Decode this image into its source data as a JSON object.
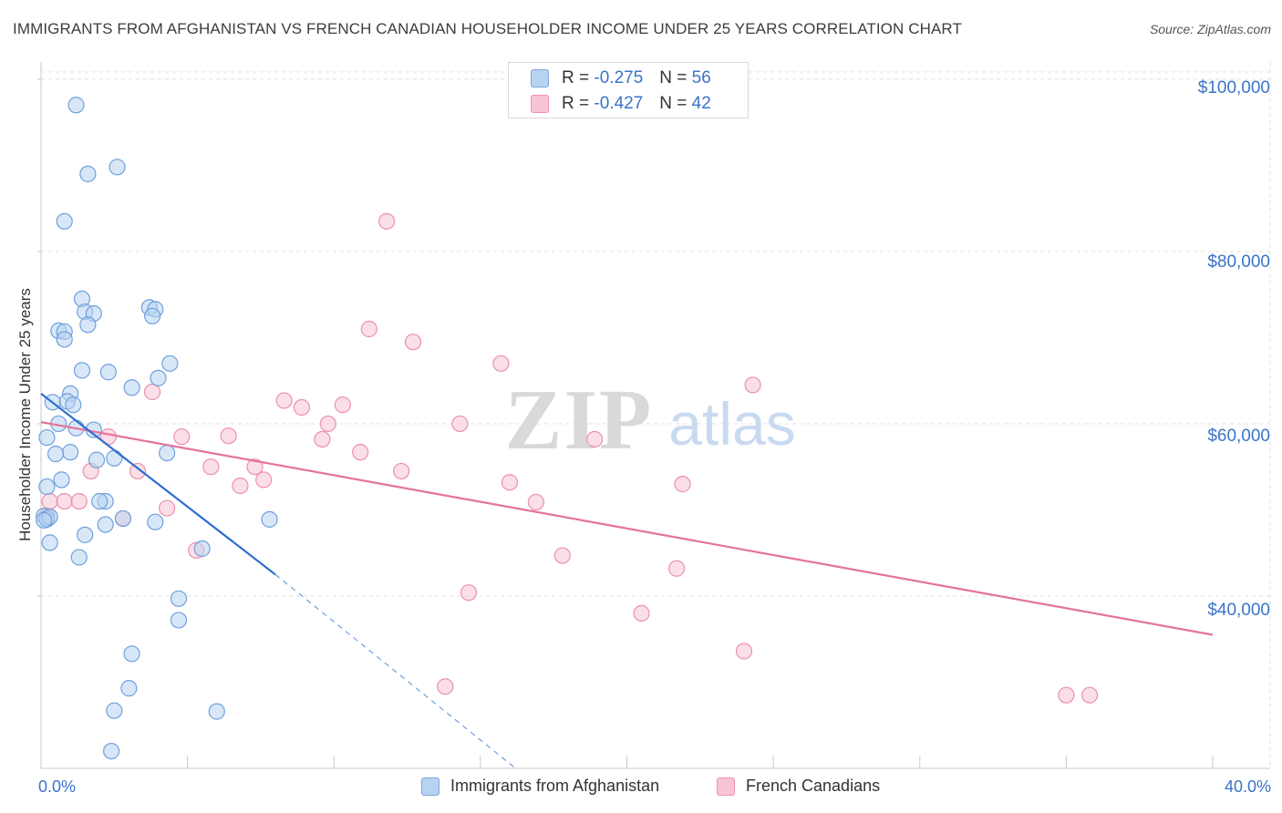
{
  "title": "IMMIGRANTS FROM AFGHANISTAN VS FRENCH CANADIAN HOUSEHOLDER INCOME UNDER 25 YEARS CORRELATION CHART",
  "source": "Source: ZipAtlas.com",
  "watermark": {
    "zip": "ZIP",
    "atlas": "atlas"
  },
  "legend_top": {
    "blue": {
      "r_label": "R =",
      "r_value": "-0.275",
      "n_label": "N =",
      "n_value": "56"
    },
    "pink": {
      "r_label": "R =",
      "r_value": "-0.427",
      "n_label": "N =",
      "n_value": "42"
    }
  },
  "colors": {
    "blue_fill": "#b8d3f2",
    "blue_stroke": "#6fa0dc",
    "blue_line": "#2f6fd0",
    "pink_fill": "#f7c4d4",
    "pink_stroke": "#ec8fae",
    "pink_line": "#e4739a",
    "grid": "#e2e2e2",
    "accent_text": "#3a74c9"
  },
  "chart_data": {
    "type": "scatter",
    "title": "IMMIGRANTS FROM AFGHANISTAN VS FRENCH CANADIAN HOUSEHOLDER INCOME UNDER 25 YEARS CORRELATION CHART",
    "xlabel": "",
    "ylabel": "Householder Income Under 25 years",
    "xlim": [
      0,
      40
    ],
    "ylim": [
      20000,
      102000
    ],
    "x_tick_labels": [
      "0.0%",
      "40.0%"
    ],
    "y_ticks": [
      40000,
      60000,
      80000,
      100000
    ],
    "y_tick_labels": [
      "$40,000",
      "$60,000",
      "$80,000",
      "$100,000"
    ],
    "grid": true,
    "series": [
      {
        "name": "Immigrants from Afghanistan",
        "color": "#b8d3f2",
        "points": [
          [
            1.2,
            97000
          ],
          [
            1.6,
            89000
          ],
          [
            2.6,
            89800
          ],
          [
            0.8,
            83500
          ],
          [
            1.4,
            74500
          ],
          [
            3.7,
            73500
          ],
          [
            3.9,
            73300
          ],
          [
            1.5,
            73000
          ],
          [
            1.8,
            72800
          ],
          [
            3.8,
            72500
          ],
          [
            1.6,
            71500
          ],
          [
            0.6,
            70800
          ],
          [
            0.8,
            70700
          ],
          [
            0.8,
            69800
          ],
          [
            4.4,
            67000
          ],
          [
            1.4,
            66200
          ],
          [
            2.3,
            66000
          ],
          [
            4.0,
            65300
          ],
          [
            3.1,
            64200
          ],
          [
            1.0,
            63500
          ],
          [
            0.4,
            62500
          ],
          [
            0.9,
            62600
          ],
          [
            1.1,
            62200
          ],
          [
            0.6,
            60000
          ],
          [
            1.2,
            59500
          ],
          [
            1.8,
            59300
          ],
          [
            0.2,
            58400
          ],
          [
            1.0,
            56700
          ],
          [
            0.5,
            56500
          ],
          [
            4.3,
            56600
          ],
          [
            2.5,
            56000
          ],
          [
            1.9,
            55800
          ],
          [
            0.7,
            53500
          ],
          [
            0.2,
            52700
          ],
          [
            2.2,
            51000
          ],
          [
            2.0,
            51000
          ],
          [
            0.1,
            49300
          ],
          [
            0.2,
            48900
          ],
          [
            2.8,
            49000
          ],
          [
            3.9,
            48600
          ],
          [
            7.8,
            48900
          ],
          [
            2.2,
            48300
          ],
          [
            1.5,
            47100
          ],
          [
            0.3,
            46200
          ],
          [
            5.5,
            45500
          ],
          [
            1.3,
            44500
          ],
          [
            4.7,
            39700
          ],
          [
            4.7,
            37200
          ],
          [
            3.1,
            33300
          ],
          [
            3.0,
            29300
          ],
          [
            2.5,
            26700
          ],
          [
            6.0,
            26600
          ],
          [
            2.4,
            22000
          ],
          [
            0.2,
            49000
          ],
          [
            0.3,
            49200
          ],
          [
            0.1,
            48800
          ]
        ]
      },
      {
        "name": "French Canadians",
        "color": "#f7c4d4",
        "points": [
          [
            11.8,
            83500
          ],
          [
            11.2,
            71000
          ],
          [
            12.7,
            69500
          ],
          [
            15.7,
            67000
          ],
          [
            24.3,
            64500
          ],
          [
            3.8,
            63700
          ],
          [
            8.3,
            62700
          ],
          [
            8.9,
            61900
          ],
          [
            10.3,
            62200
          ],
          [
            9.8,
            60000
          ],
          [
            14.3,
            60000
          ],
          [
            6.4,
            58600
          ],
          [
            4.8,
            58500
          ],
          [
            2.3,
            58500
          ],
          [
            9.6,
            58200
          ],
          [
            18.9,
            58200
          ],
          [
            10.9,
            56700
          ],
          [
            5.8,
            55000
          ],
          [
            7.3,
            55000
          ],
          [
            1.7,
            54500
          ],
          [
            3.3,
            54500
          ],
          [
            12.3,
            54500
          ],
          [
            7.6,
            53500
          ],
          [
            6.8,
            52800
          ],
          [
            16.0,
            53200
          ],
          [
            21.9,
            53000
          ],
          [
            0.3,
            51000
          ],
          [
            0.8,
            51000
          ],
          [
            1.3,
            51000
          ],
          [
            4.3,
            50200
          ],
          [
            16.9,
            50900
          ],
          [
            0.2,
            49300
          ],
          [
            2.8,
            49000
          ],
          [
            5.3,
            45300
          ],
          [
            17.8,
            44700
          ],
          [
            21.7,
            43200
          ],
          [
            14.6,
            40400
          ],
          [
            20.5,
            38000
          ],
          [
            24.0,
            33600
          ],
          [
            13.8,
            29500
          ],
          [
            35.8,
            28500
          ],
          [
            35.0,
            28500
          ]
        ]
      }
    ],
    "trendlines": [
      {
        "series": "Immigrants from Afghanistan",
        "x0": 0.0,
        "y0": 63500,
        "x1": 8.0,
        "y1": 42500,
        "dashed_extension_to": [
          16.2,
          20000
        ]
      },
      {
        "series": "French Canadians",
        "x0": 0.0,
        "y0": 60200,
        "x1": 40.0,
        "y1": 35500
      }
    ]
  }
}
